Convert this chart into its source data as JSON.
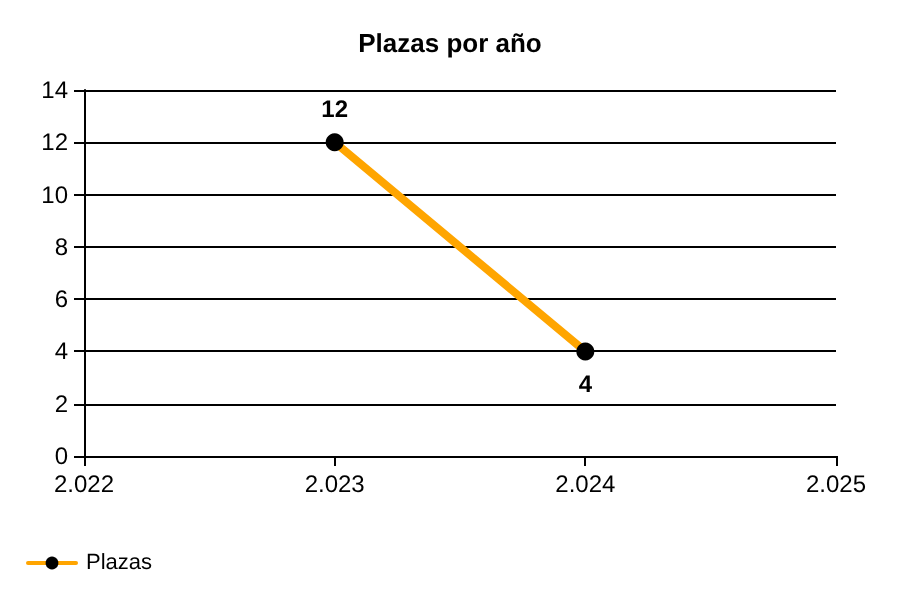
{
  "chart_data": {
    "type": "line",
    "title": "Plazas por año",
    "x": [
      2023,
      2024
    ],
    "series": [
      {
        "name": "Plazas",
        "color": "#ffa500",
        "values": [
          12,
          4
        ]
      }
    ],
    "xlim": [
      2022,
      2025
    ],
    "xticks": [
      {
        "value": 2022,
        "label": "2.022"
      },
      {
        "value": 2023,
        "label": "2.023"
      },
      {
        "value": 2024,
        "label": "2.024"
      },
      {
        "value": 2025,
        "label": "2.025"
      }
    ],
    "ylim": [
      0,
      14
    ],
    "yticks": [
      0,
      2,
      4,
      6,
      8,
      10,
      12,
      14
    ],
    "grid": "y",
    "legend": "bottom left",
    "marker": "circle",
    "data_labels": true
  }
}
